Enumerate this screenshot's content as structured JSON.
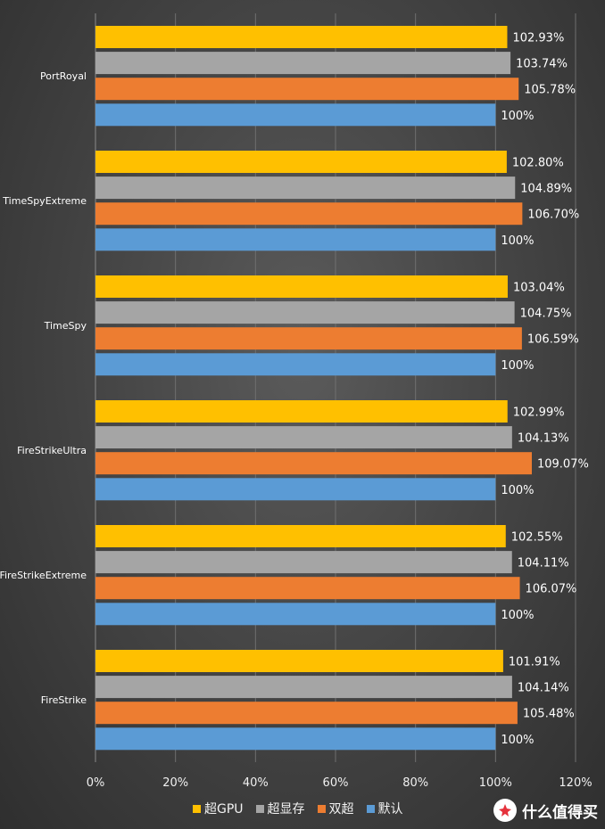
{
  "chart_data": {
    "type": "bar",
    "orientation": "horizontal",
    "categories": [
      "PortRoyal",
      "TimeSpyExtreme",
      "TimeSpy",
      "FireStrikeUltra",
      "FireStrikeExtreme",
      "FireStrike"
    ],
    "series": [
      {
        "name": "超GPU",
        "color": "#ffc000",
        "values": [
          102.93,
          102.8,
          103.04,
          102.99,
          102.55,
          101.91
        ],
        "labels": [
          "102.93%",
          "102.80%",
          "103.04%",
          "102.99%",
          "102.55%",
          "101.91%"
        ]
      },
      {
        "name": "超显存",
        "color": "#a5a5a5",
        "values": [
          103.74,
          104.89,
          104.75,
          104.13,
          104.11,
          104.14
        ],
        "labels": [
          "103.74%",
          "104.89%",
          "104.75%",
          "104.13%",
          "104.11%",
          "104.14%"
        ]
      },
      {
        "name": "双超",
        "color": "#ed7d31",
        "values": [
          105.78,
          106.7,
          106.59,
          109.07,
          106.07,
          105.48
        ],
        "labels": [
          "105.78%",
          "106.70%",
          "106.59%",
          "109.07%",
          "106.07%",
          "105.48%"
        ]
      },
      {
        "name": "默认",
        "color": "#5b9bd5",
        "values": [
          100,
          100,
          100,
          100,
          100,
          100
        ],
        "labels": [
          "100%",
          "100%",
          "100%",
          "100%",
          "100%",
          "100%"
        ]
      }
    ],
    "xlim": [
      0,
      120
    ],
    "xticks": [
      "0%",
      "20%",
      "40%",
      "60%",
      "80%",
      "100%",
      "120%"
    ],
    "grid": true,
    "legend_position": "bottom"
  },
  "watermark": {
    "text": "什么值得买",
    "icon": "smzdm-logo-icon"
  }
}
